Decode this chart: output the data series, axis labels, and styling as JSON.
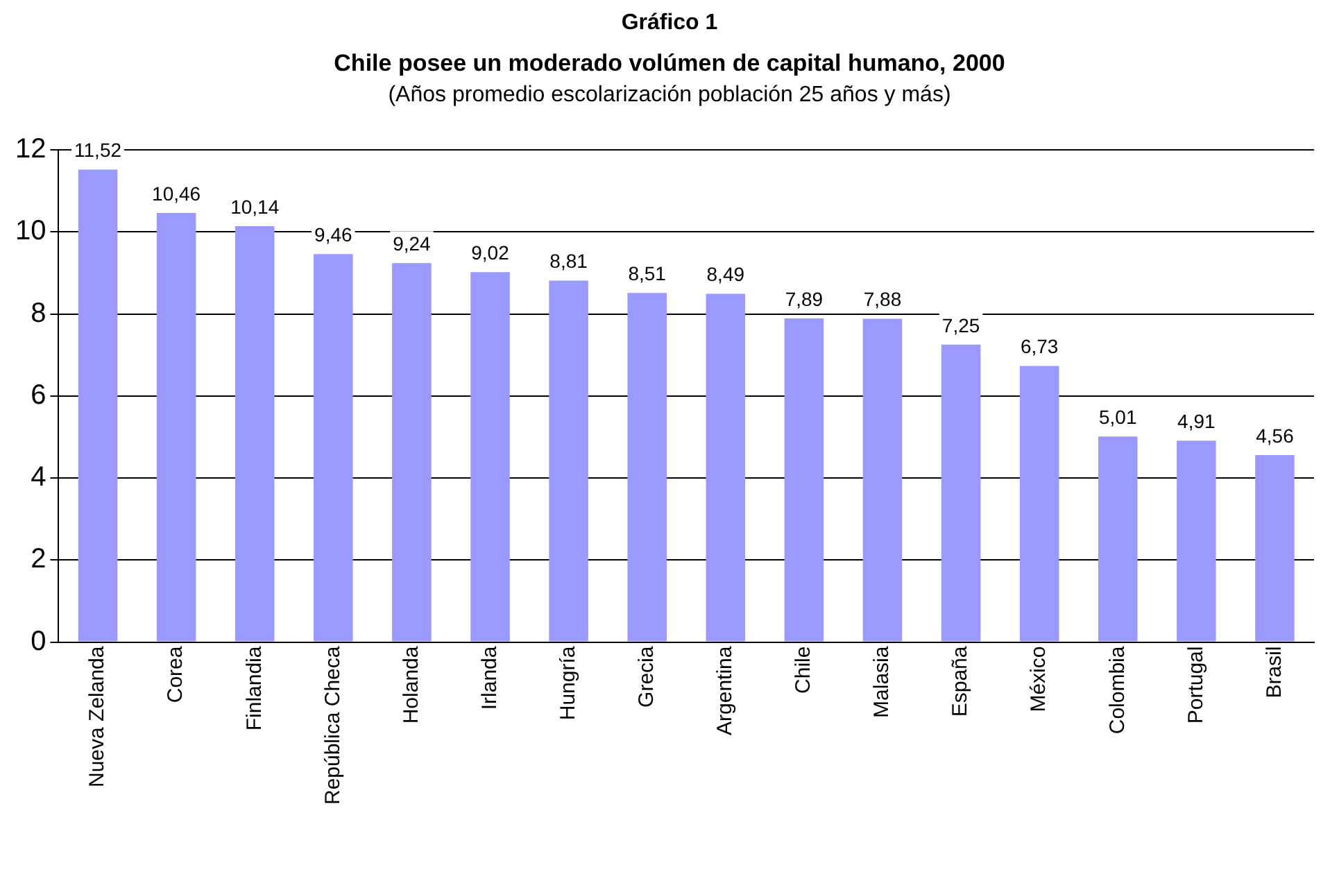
{
  "chart_data": {
    "type": "bar",
    "title": "Gráfico 1",
    "subtitle": "Chile posee un moderado volúmen de capital humano, 2000",
    "annotations": [
      "(Años promedio escolarización población 25 años y más)"
    ],
    "categories": [
      "Nueva Zelanda",
      "Corea",
      "Finlandia",
      "República Checa",
      "Holanda",
      "Irlanda",
      "Hungría",
      "Grecia",
      "Argentina",
      "Chile",
      "Malasia",
      "España",
      "México",
      "Colombia",
      "Portugal",
      "Brasil"
    ],
    "values": [
      11.52,
      10.46,
      10.14,
      9.46,
      9.24,
      9.02,
      8.81,
      8.51,
      8.49,
      7.89,
      7.88,
      7.25,
      6.73,
      5.01,
      4.91,
      4.56
    ],
    "value_labels": [
      "11,52",
      "10,46",
      "10,14",
      "9,46",
      "9,24",
      "9,02",
      "8,81",
      "8,51",
      "8,49",
      "7,89",
      "7,88",
      "7,25",
      "6,73",
      "5,01",
      "4,91",
      "4,56"
    ],
    "color": "#9999ff",
    "ylim": [
      0,
      12
    ],
    "yticks": [
      0,
      2,
      4,
      6,
      8,
      10,
      12
    ],
    "grid": "y",
    "legend": false
  }
}
